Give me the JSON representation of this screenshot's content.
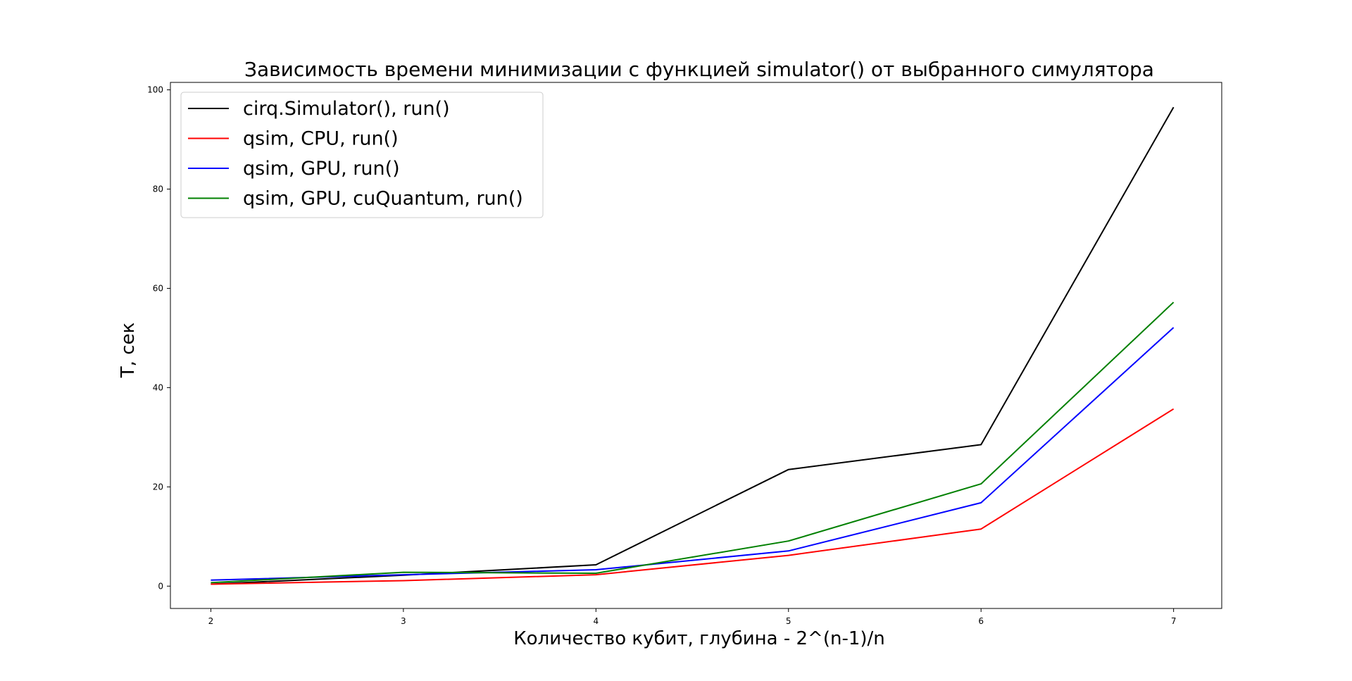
{
  "chart_data": {
    "type": "line",
    "title": "Зависимость времени минимизации с функцией simulator() от выбранного симулятора",
    "xlabel": "Количество кубит, глубина - 2^(n-1)/n",
    "ylabel": "T, сек",
    "x": [
      2,
      3,
      4,
      5,
      6,
      7
    ],
    "x_ticks": [
      "2",
      "3",
      "4",
      "5",
      "6",
      "7"
    ],
    "y_ticks": [
      "0",
      "20",
      "40",
      "60",
      "80",
      "100"
    ],
    "xlim": [
      1.79,
      7.25
    ],
    "ylim": [
      -4.5,
      101.5
    ],
    "grid": false,
    "legend_position": "top-left",
    "series": [
      {
        "name": "cirq.Simulator(), run()",
        "color": "#000000",
        "values": [
          0.4,
          2.2,
          4.3,
          23.5,
          28.5,
          96.5
        ]
      },
      {
        "name": "qsim, CPU, run()",
        "color": "#ff0000",
        "values": [
          0.4,
          1.1,
          2.3,
          6.2,
          11.5,
          35.7
        ]
      },
      {
        "name": "qsim, GPU, run()",
        "color": "#0000ff",
        "values": [
          1.2,
          2.3,
          3.3,
          7.1,
          16.8,
          52.1
        ]
      },
      {
        "name": "qsim, GPU, cuQuantum, run()",
        "color": "#008000",
        "values": [
          0.7,
          2.8,
          2.6,
          9.1,
          20.6,
          57.2
        ]
      }
    ]
  }
}
